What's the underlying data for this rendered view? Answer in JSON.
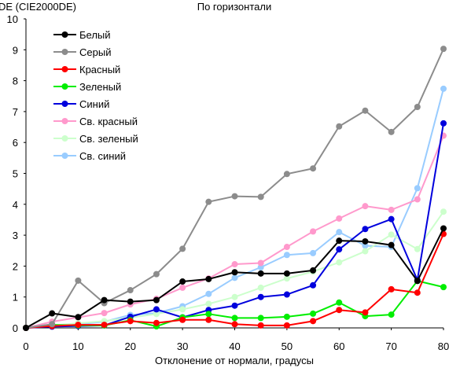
{
  "chart_data": {
    "type": "line",
    "title": "По горизонтали",
    "ylabel": "DE (CIE2000DE)",
    "xlabel": "Отклонение от нормали, градусы",
    "xlim": [
      0,
      80
    ],
    "ylim": [
      0,
      10
    ],
    "xticks": [
      "0",
      "10",
      "20",
      "30",
      "40",
      "50",
      "60",
      "70",
      "80"
    ],
    "yticks": [
      "0",
      "1",
      "2",
      "3",
      "4",
      "5",
      "6",
      "7",
      "8",
      "9",
      "10"
    ],
    "grid": false,
    "legend_position": "top-left",
    "x": [
      0,
      5,
      10,
      15,
      20,
      25,
      30,
      35,
      40,
      45,
      50,
      55,
      60,
      65,
      70,
      75,
      80
    ],
    "series": [
      {
        "name": "Белый",
        "color": "#000000",
        "values": [
          0,
          0.47,
          0.35,
          0.9,
          0.85,
          0.9,
          1.5,
          1.58,
          1.8,
          1.76,
          1.76,
          1.86,
          2.82,
          2.8,
          2.68,
          1.52,
          3.22
        ]
      },
      {
        "name": "Серый",
        "color": "#8c8c8c",
        "values": [
          0,
          0.12,
          1.53,
          0.8,
          1.22,
          1.74,
          2.56,
          4.08,
          4.26,
          4.24,
          4.98,
          5.16,
          6.52,
          7.03,
          6.34,
          7.15,
          9.03
        ]
      },
      {
        "name": "Красный",
        "color": "#ff0000",
        "values": [
          0,
          0.06,
          0.1,
          0.1,
          0.22,
          0.16,
          0.26,
          0.26,
          0.12,
          0.08,
          0.08,
          0.22,
          0.58,
          0.5,
          1.25,
          1.14,
          3.04
        ]
      },
      {
        "name": "Зеленый",
        "color": "#00ee00",
        "values": [
          0,
          0.1,
          0.08,
          0.08,
          0.25,
          0.05,
          0.34,
          0.45,
          0.32,
          0.32,
          0.36,
          0.46,
          0.82,
          0.38,
          0.43,
          1.52,
          1.32
        ]
      },
      {
        "name": "Синий",
        "color": "#0000dd",
        "values": [
          0,
          0.04,
          0.06,
          0.08,
          0.36,
          0.6,
          0.34,
          0.58,
          0.72,
          1.0,
          1.08,
          1.38,
          2.54,
          3.2,
          3.52,
          1.55,
          6.62
        ]
      },
      {
        "name": "Св. красный",
        "color": "#ff99cc",
        "values": [
          0,
          0.2,
          0.34,
          0.48,
          0.76,
          0.94,
          1.3,
          1.6,
          2.06,
          2.1,
          2.62,
          3.12,
          3.54,
          3.94,
          3.82,
          4.16,
          6.22
        ]
      },
      {
        "name": "Св. зеленый",
        "color": "#ccffcc",
        "values": [
          0,
          0.08,
          0.15,
          0.22,
          0.33,
          0.45,
          0.6,
          0.78,
          1.0,
          1.3,
          1.6,
          1.82,
          2.12,
          2.48,
          3.02,
          2.55,
          3.76
        ]
      },
      {
        "name": "Св. синий",
        "color": "#99ccff",
        "values": [
          0,
          0.06,
          0.12,
          0.2,
          0.42,
          0.48,
          0.7,
          1.1,
          1.62,
          1.96,
          2.36,
          2.42,
          3.1,
          2.66,
          2.62,
          4.52,
          7.74
        ]
      }
    ]
  }
}
